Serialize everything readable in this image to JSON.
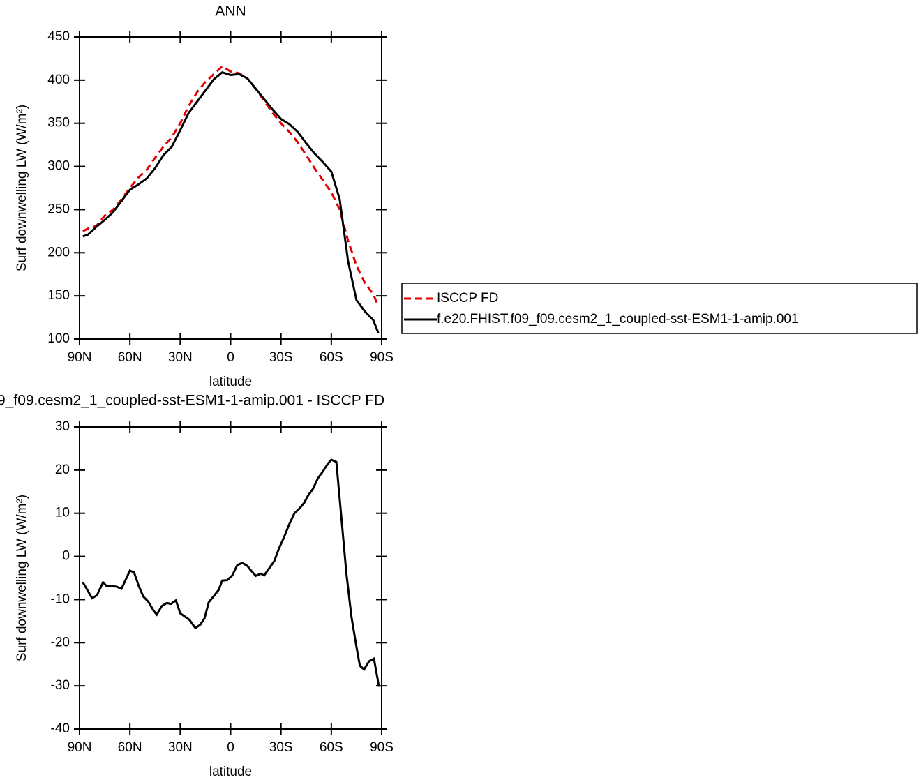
{
  "chart_data": [
    {
      "type": "line",
      "title": "ANN",
      "xlabel": "latitude",
      "ylabel": "Surf downwelling LW (W/m²)",
      "xlim": [
        90,
        -90
      ],
      "xticks": [
        {
          "value": 90,
          "label": "90N"
        },
        {
          "value": 60,
          "label": "60N"
        },
        {
          "value": 30,
          "label": "30N"
        },
        0,
        {
          "value": -30,
          "label": "30S"
        },
        {
          "value": -60,
          "label": "60S"
        },
        {
          "value": -90,
          "label": "90S"
        }
      ],
      "ylim": [
        100,
        450
      ],
      "yticks": [
        100,
        150,
        200,
        250,
        300,
        350,
        400,
        450
      ],
      "legend": "right",
      "x": [
        88,
        85,
        80,
        75,
        70,
        65,
        60,
        55,
        50,
        45,
        40,
        35,
        30,
        25,
        20,
        15,
        10,
        5,
        0,
        -5,
        -10,
        -15,
        -20,
        -25,
        -30,
        -35,
        -40,
        -45,
        -50,
        -55,
        -60,
        -65,
        -70,
        -75,
        -80,
        -85,
        -88
      ],
      "series": [
        {
          "name": "ISCCP FD",
          "color": "#e00000",
          "linestyle": "dashed",
          "values": [
            225,
            228,
            231,
            243,
            250,
            262,
            275,
            287,
            296,
            310,
            323,
            334,
            350,
            370,
            386,
            398,
            407,
            416,
            410,
            408,
            402,
            390,
            376,
            362,
            350,
            340,
            328,
            313,
            298,
            284,
            270,
            250,
            214,
            185,
            165,
            152,
            138
          ]
        },
        {
          "name": "f.e20.FHIST.f09_f09.cesm2_1_coupled-sst-ESM1-1-amip.001",
          "color": "#000000",
          "linestyle": "solid",
          "values": [
            219,
            221,
            230,
            238,
            247,
            260,
            273,
            279,
            286,
            298,
            313,
            323,
            342,
            362,
            375,
            388,
            401,
            409,
            406,
            407,
            402,
            390,
            378,
            366,
            355,
            349,
            340,
            327,
            315,
            305,
            294,
            262,
            190,
            145,
            132,
            122,
            107
          ]
        }
      ]
    },
    {
      "type": "line",
      "title": "9_f09.cesm2_1_coupled-sst-ESM1-1-amip.001 - ISCCP FD",
      "xlabel": "latitude",
      "ylabel": "Surf downwelling LW (W/m²)",
      "xlim": [
        90,
        -90
      ],
      "xticks": [
        {
          "value": 90,
          "label": "90N"
        },
        {
          "value": 60,
          "label": "60N"
        },
        {
          "value": 30,
          "label": "30N"
        },
        0,
        {
          "value": -30,
          "label": "30S"
        },
        {
          "value": -60,
          "label": "60S"
        },
        {
          "value": -90,
          "label": "90S"
        }
      ],
      "ylim": [
        -40,
        30
      ],
      "yticks": [
        -40,
        -30,
        -20,
        -10,
        0,
        10,
        20,
        30
      ],
      "x": [
        88,
        82.5,
        79.6,
        76,
        74,
        68,
        65,
        60,
        57.5,
        54.6,
        52,
        49,
        46,
        44,
        41,
        38,
        35.5,
        32.6,
        30,
        24.5,
        21,
        18,
        15.5,
        13,
        10,
        7,
        5,
        2,
        -1,
        -4,
        -7,
        -10,
        -12,
        -15,
        -18,
        -20,
        -26,
        -29,
        -32,
        -35,
        -38,
        -41,
        -44,
        -46,
        -49,
        -52,
        -55,
        -58,
        -60,
        -63,
        -66,
        -69,
        -72,
        -75,
        -77,
        -79.5,
        -82.5,
        -85.4,
        -88.4
      ],
      "series": [
        {
          "color": "#000000",
          "linestyle": "solid",
          "values": [
            -6,
            -9.7,
            -9,
            -6,
            -6.8,
            -7,
            -7.5,
            -3.3,
            -3.7,
            -7,
            -9.3,
            -10.5,
            -12.5,
            -13.5,
            -11.5,
            -10.8,
            -11,
            -10.2,
            -13.2,
            -14.7,
            -16.6,
            -15.8,
            -14.3,
            -10.6,
            -9.2,
            -7.7,
            -5.6,
            -5.5,
            -4.4,
            -2,
            -1.5,
            -2.2,
            -3.2,
            -4.5,
            -4,
            -4.4,
            -1.1,
            2,
            4.6,
            7.5,
            10,
            11.1,
            12.5,
            14,
            15.6,
            18.1,
            19.7,
            21.5,
            22.4,
            21.9,
            9,
            -4,
            -14,
            -21,
            -25.3,
            -26.2,
            -24.3,
            -23.7,
            -30.2
          ]
        }
      ]
    }
  ]
}
